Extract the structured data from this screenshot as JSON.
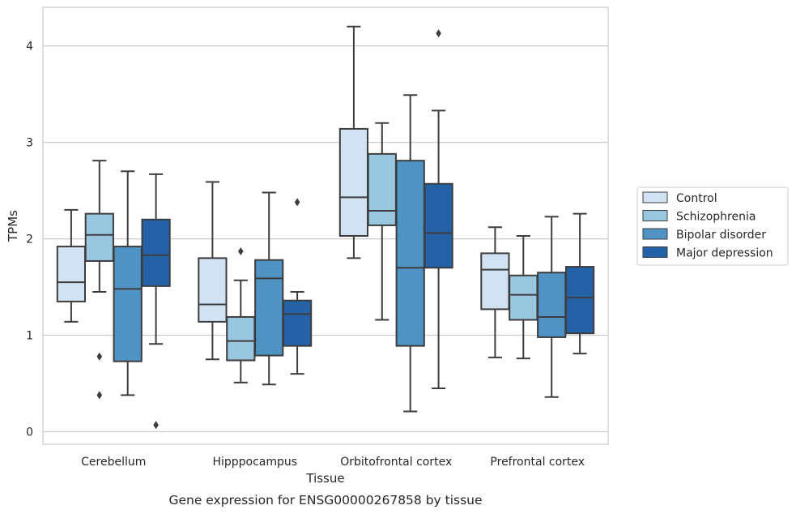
{
  "chart_data": {
    "type": "box",
    "title": "",
    "caption": "Gene expression for ENSG00000267858 by tissue",
    "xlabel": "Tissue",
    "ylabel": "TPMs",
    "ylim": [
      -0.13,
      4.4
    ],
    "yticks": [
      0,
      1,
      2,
      3,
      4
    ],
    "grid": "horizontal",
    "legend_position": "right",
    "categories": [
      "Cerebellum",
      "Hipppocampus",
      "Orbitofrontal cortex",
      "Prefrontal cortex"
    ],
    "series": [
      {
        "name": "Control",
        "color": "#d1e2f2",
        "boxes": [
          {
            "whislo": 1.14,
            "q1": 1.35,
            "med": 1.55,
            "q3": 1.92,
            "whishi": 2.3,
            "fliers": []
          },
          {
            "whislo": 0.75,
            "q1": 1.14,
            "med": 1.32,
            "q3": 1.8,
            "whishi": 2.59,
            "fliers": []
          },
          {
            "whislo": 1.8,
            "q1": 2.03,
            "med": 2.43,
            "q3": 3.14,
            "whishi": 4.2,
            "fliers": []
          },
          {
            "whislo": 0.77,
            "q1": 1.27,
            "med": 1.68,
            "q3": 1.85,
            "whishi": 2.12,
            "fliers": []
          }
        ]
      },
      {
        "name": "Schizophrenia",
        "color": "#9ac7e0",
        "boxes": [
          {
            "whislo": 1.45,
            "q1": 1.77,
            "med": 2.04,
            "q3": 2.26,
            "whishi": 2.81,
            "fliers": [
              0.78,
              0.38
            ]
          },
          {
            "whislo": 0.51,
            "q1": 0.74,
            "med": 0.94,
            "q3": 1.19,
            "whishi": 1.57,
            "fliers": [
              1.87
            ]
          },
          {
            "whislo": 1.16,
            "q1": 2.14,
            "med": 2.29,
            "q3": 2.88,
            "whishi": 3.2,
            "fliers": []
          },
          {
            "whislo": 0.76,
            "q1": 1.16,
            "med": 1.42,
            "q3": 1.62,
            "whishi": 2.03,
            "fliers": []
          }
        ]
      },
      {
        "name": "Bipolar disorder",
        "color": "#4e93c4",
        "boxes": [
          {
            "whislo": 0.38,
            "q1": 0.73,
            "med": 1.48,
            "q3": 1.92,
            "whishi": 2.7,
            "fliers": []
          },
          {
            "whislo": 0.49,
            "q1": 0.79,
            "med": 1.59,
            "q3": 1.78,
            "whishi": 2.48,
            "fliers": []
          },
          {
            "whislo": 0.21,
            "q1": 0.89,
            "med": 1.7,
            "q3": 2.81,
            "whishi": 3.49,
            "fliers": []
          },
          {
            "whislo": 0.36,
            "q1": 0.98,
            "med": 1.19,
            "q3": 1.65,
            "whishi": 2.23,
            "fliers": []
          }
        ]
      },
      {
        "name": "Major depression",
        "color": "#2461a7",
        "boxes": [
          {
            "whislo": 0.91,
            "q1": 1.51,
            "med": 1.83,
            "q3": 2.2,
            "whishi": 2.67,
            "fliers": [
              0.07
            ]
          },
          {
            "whislo": 0.6,
            "q1": 0.89,
            "med": 1.22,
            "q3": 1.36,
            "whishi": 1.45,
            "fliers": [
              2.38
            ]
          },
          {
            "whislo": 0.45,
            "q1": 1.7,
            "med": 2.06,
            "q3": 2.57,
            "whishi": 3.33,
            "fliers": [
              4.13
            ]
          },
          {
            "whislo": 0.81,
            "q1": 1.02,
            "med": 1.39,
            "q3": 1.71,
            "whishi": 2.26,
            "fliers": []
          }
        ]
      }
    ]
  }
}
